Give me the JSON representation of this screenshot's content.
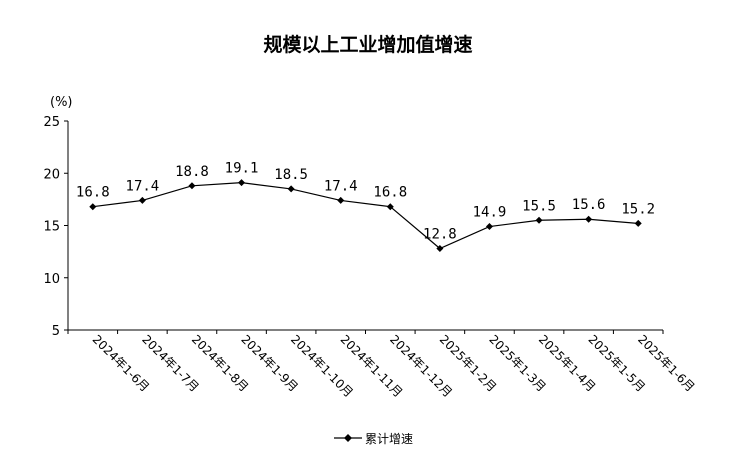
{
  "chart_data": {
    "type": "line",
    "title": "规模以上工业增加值增速",
    "ylabel": "(%)",
    "xlabel": "",
    "ylim": [
      5,
      25
    ],
    "yticks": [
      "25",
      "20",
      "15",
      "10",
      "5"
    ],
    "categories": [
      "2024年1-6月",
      "2024年1-7月",
      "2024年1-8月",
      "2024年1-9月",
      "2024年1-10月",
      "2024年1-11月",
      "2024年1-12月",
      "2025年1-2月",
      "2025年1-3月",
      "2025年1-4月",
      "2025年1-5月",
      "2025年1-6月"
    ],
    "series": [
      {
        "name": "累计增速",
        "values": [
          16.8,
          17.4,
          18.8,
          19.1,
          18.5,
          17.4,
          16.8,
          12.8,
          14.9,
          15.5,
          15.6,
          15.2
        ],
        "labels": [
          "16.8",
          "17.4",
          "18.8",
          "19.1",
          "18.5",
          "17.4",
          "16.8",
          "12.8",
          "14.9",
          "15.5",
          "15.6",
          "15.2"
        ],
        "color": "#000000",
        "marker": "diamond"
      }
    ],
    "grid": false,
    "legend_position": "bottom-center"
  }
}
